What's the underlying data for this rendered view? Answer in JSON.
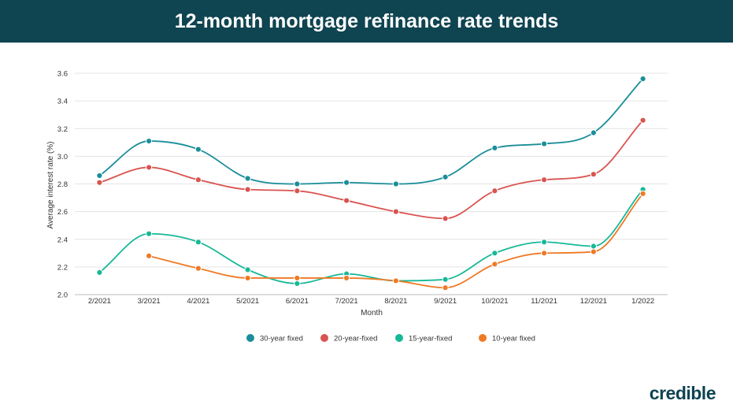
{
  "header": {
    "title": "12-month mortgage refinance rate trends"
  },
  "brand": {
    "name": "credible"
  },
  "colors": {
    "banner": "#0f4451",
    "series": [
      "#1a8e9a",
      "#d9534f",
      "#17b897",
      "#ee7a26"
    ]
  },
  "chart_data": {
    "type": "line",
    "xlabel": "Month",
    "ylabel": "Average interest rate (%)",
    "ylim": [
      2.0,
      3.6
    ],
    "yticks": [
      "2.0",
      "2.2",
      "2.4",
      "2.6",
      "2.8",
      "3.0",
      "3.2",
      "3.4",
      "3.6"
    ],
    "grid": true,
    "legend_position": "bottom-center",
    "categories": [
      "2/2021",
      "3/2021",
      "4/2021",
      "5/2021",
      "6/2021",
      "7/2021",
      "8/2021",
      "9/2021",
      "10/2021",
      "11/2021",
      "12/2021",
      "1/2022"
    ],
    "series": [
      {
        "name": "30-year fixed",
        "values": [
          2.86,
          3.11,
          3.05,
          2.84,
          2.8,
          2.81,
          2.8,
          2.85,
          3.06,
          3.09,
          3.17,
          3.56
        ]
      },
      {
        "name": "20-year-fixed",
        "values": [
          2.81,
          2.92,
          2.83,
          2.76,
          2.75,
          2.68,
          2.6,
          2.55,
          2.75,
          2.83,
          2.87,
          3.26
        ]
      },
      {
        "name": "15-year-fixed",
        "values": [
          2.16,
          2.44,
          2.38,
          2.18,
          2.08,
          2.15,
          2.1,
          2.11,
          2.3,
          2.38,
          2.35,
          2.76
        ]
      },
      {
        "name": "10-year fixed",
        "values": [
          null,
          2.28,
          2.19,
          2.12,
          2.12,
          2.12,
          2.1,
          2.05,
          2.22,
          2.3,
          2.31,
          2.73
        ]
      }
    ]
  }
}
